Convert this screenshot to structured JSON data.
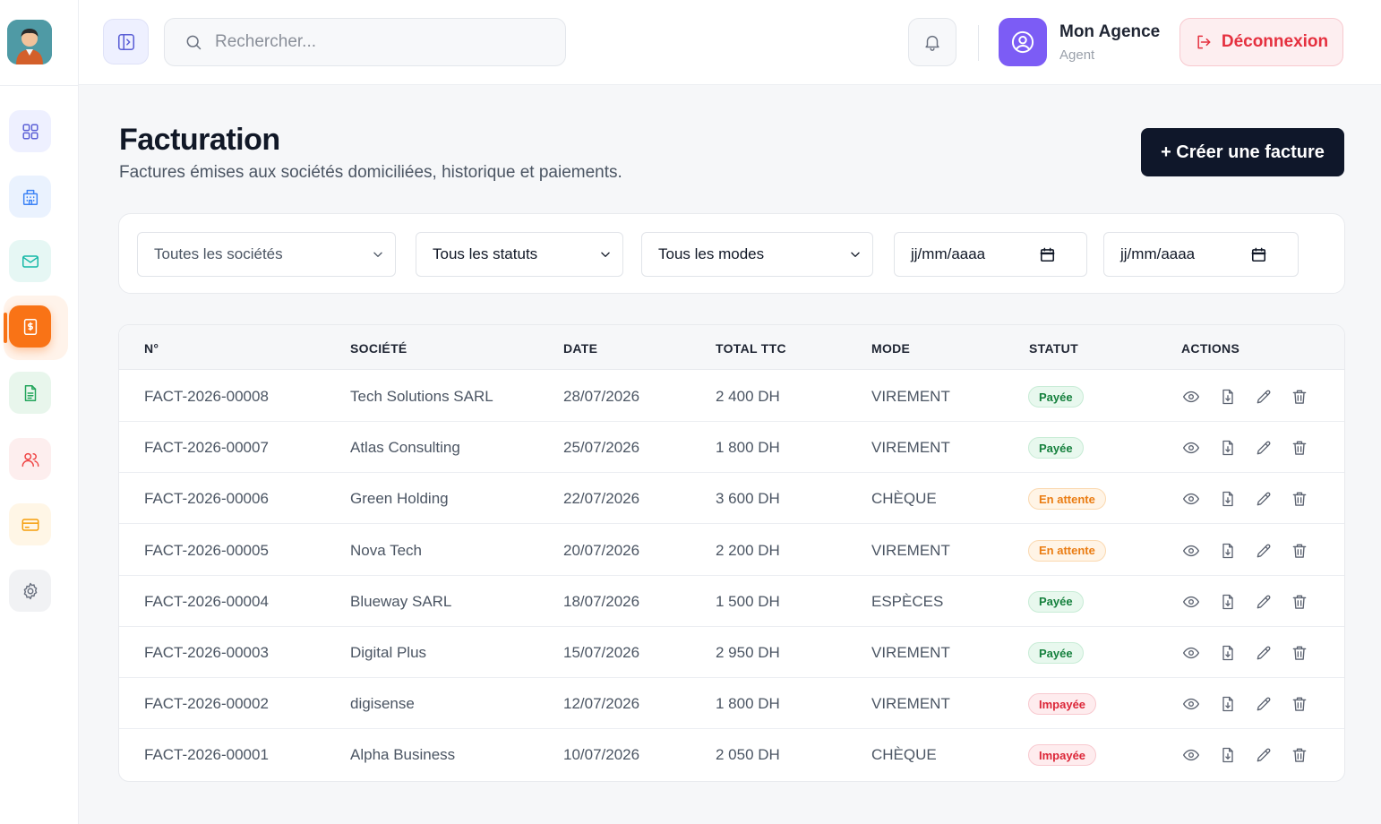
{
  "topbar": {
    "search_placeholder": "Rechercher...",
    "user_name": "Mon Agence",
    "user_role": "Agent",
    "logout_label": "Déconnexion"
  },
  "sidebar": {
    "items": [
      {
        "name": "dashboard",
        "icon": "grid-icon",
        "color": "#5b5fd6",
        "bg": "#eef0ff"
      },
      {
        "name": "societes",
        "icon": "building-icon",
        "color": "#3b82f6",
        "bg": "#eaf2fe"
      },
      {
        "name": "courrier",
        "icon": "mail-icon",
        "color": "#14b8a6",
        "bg": "#e6f7f4"
      },
      {
        "name": "facturation",
        "icon": "invoice-icon",
        "color": "#ffffff",
        "bg": "#f97316",
        "active": true
      },
      {
        "name": "documents",
        "icon": "document-icon",
        "color": "#22a55b",
        "bg": "#e8f6ec"
      },
      {
        "name": "utilisateurs",
        "icon": "users-icon",
        "color": "#ef4444",
        "bg": "#fdeeee"
      },
      {
        "name": "paiements",
        "icon": "card-icon",
        "color": "#f59e0b",
        "bg": "#fff6e6"
      },
      {
        "name": "parametres",
        "icon": "gear-icon",
        "color": "#6b7280",
        "bg": "#f1f2f4"
      }
    ]
  },
  "header": {
    "title": "Facturation",
    "subtitle": "Factures émises aux sociétés domiciliées, historique et paiements.",
    "create_label": "+ Créer une facture"
  },
  "filters": {
    "societe": "Toutes les sociétés",
    "statut": "Tous les statuts",
    "mode": "Tous les modes",
    "date_from": "jj/mm/aaaa",
    "date_to": "jj/mm/aaaa"
  },
  "table": {
    "columns": [
      "N°",
      "SOCIÉTÉ",
      "DATE",
      "TOTAL TTC",
      "MODE",
      "STATUT",
      "ACTIONS"
    ],
    "rows": [
      {
        "num": "FACT-2026-00008",
        "societe": "Tech Solutions SARL",
        "date": "28/07/2026",
        "total": "2 400 DH",
        "mode": "VIREMENT",
        "statut": "Payée",
        "status_type": "paid"
      },
      {
        "num": "FACT-2026-00007",
        "societe": "Atlas Consulting",
        "date": "25/07/2026",
        "total": "1 800 DH",
        "mode": "VIREMENT",
        "statut": "Payée",
        "status_type": "paid"
      },
      {
        "num": "FACT-2026-00006",
        "societe": "Green Holding",
        "date": "22/07/2026",
        "total": "3 600 DH",
        "mode": "CHÈQUE",
        "statut": "En attente",
        "status_type": "pending"
      },
      {
        "num": "FACT-2026-00005",
        "societe": "Nova Tech",
        "date": "20/07/2026",
        "total": "2 200 DH",
        "mode": "VIREMENT",
        "statut": "En attente",
        "status_type": "pending"
      },
      {
        "num": "FACT-2026-00004",
        "societe": "Blueway SARL",
        "date": "18/07/2026",
        "total": "1 500 DH",
        "mode": "ESPÈCES",
        "statut": "Payée",
        "status_type": "paid"
      },
      {
        "num": "FACT-2026-00003",
        "societe": "Digital Plus",
        "date": "15/07/2026",
        "total": "2 950 DH",
        "mode": "VIREMENT",
        "statut": "Payée",
        "status_type": "paid"
      },
      {
        "num": "FACT-2026-00002",
        "societe": "digisense",
        "date": "12/07/2026",
        "total": "1 800 DH",
        "mode": "VIREMENT",
        "statut": "Impayée",
        "status_type": "unpaid"
      },
      {
        "num": "FACT-2026-00001",
        "societe": "Alpha Business",
        "date": "10/07/2026",
        "total": "2 050 DH",
        "mode": "CHÈQUE",
        "statut": "Impayée",
        "status_type": "unpaid"
      }
    ]
  }
}
